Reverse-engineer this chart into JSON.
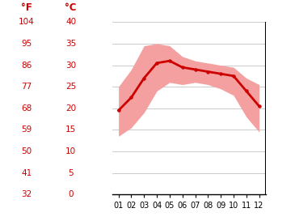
{
  "months": [
    1,
    2,
    3,
    4,
    5,
    6,
    7,
    8,
    9,
    10,
    11,
    12
  ],
  "mean_temp": [
    19.5,
    22.5,
    27.0,
    30.5,
    31.0,
    29.5,
    29.0,
    28.5,
    28.0,
    27.5,
    24.0,
    20.5
  ],
  "max_temp": [
    25.0,
    29.0,
    34.5,
    35.0,
    34.5,
    32.0,
    31.0,
    30.5,
    30.0,
    29.5,
    27.0,
    25.5
  ],
  "min_temp": [
    13.5,
    15.5,
    19.0,
    24.0,
    26.0,
    25.5,
    26.0,
    25.5,
    24.5,
    23.0,
    18.0,
    14.5
  ],
  "line_color": "#cc0000",
  "band_color": "#f5a0a0",
  "grid_color": "#cccccc",
  "axis_color": "#cc0000",
  "ylabel_F": "°F",
  "ylabel_C": "°C",
  "yticks_C": [
    0,
    5,
    10,
    15,
    20,
    25,
    30,
    35,
    40
  ],
  "yticks_F": [
    32,
    41,
    50,
    59,
    68,
    77,
    86,
    95,
    104
  ],
  "xlabels": [
    "01",
    "02",
    "03",
    "04",
    "05",
    "06",
    "07",
    "08",
    "09",
    "10",
    "11",
    "12"
  ],
  "ylim_C": [
    0,
    40
  ],
  "background": "#ffffff"
}
